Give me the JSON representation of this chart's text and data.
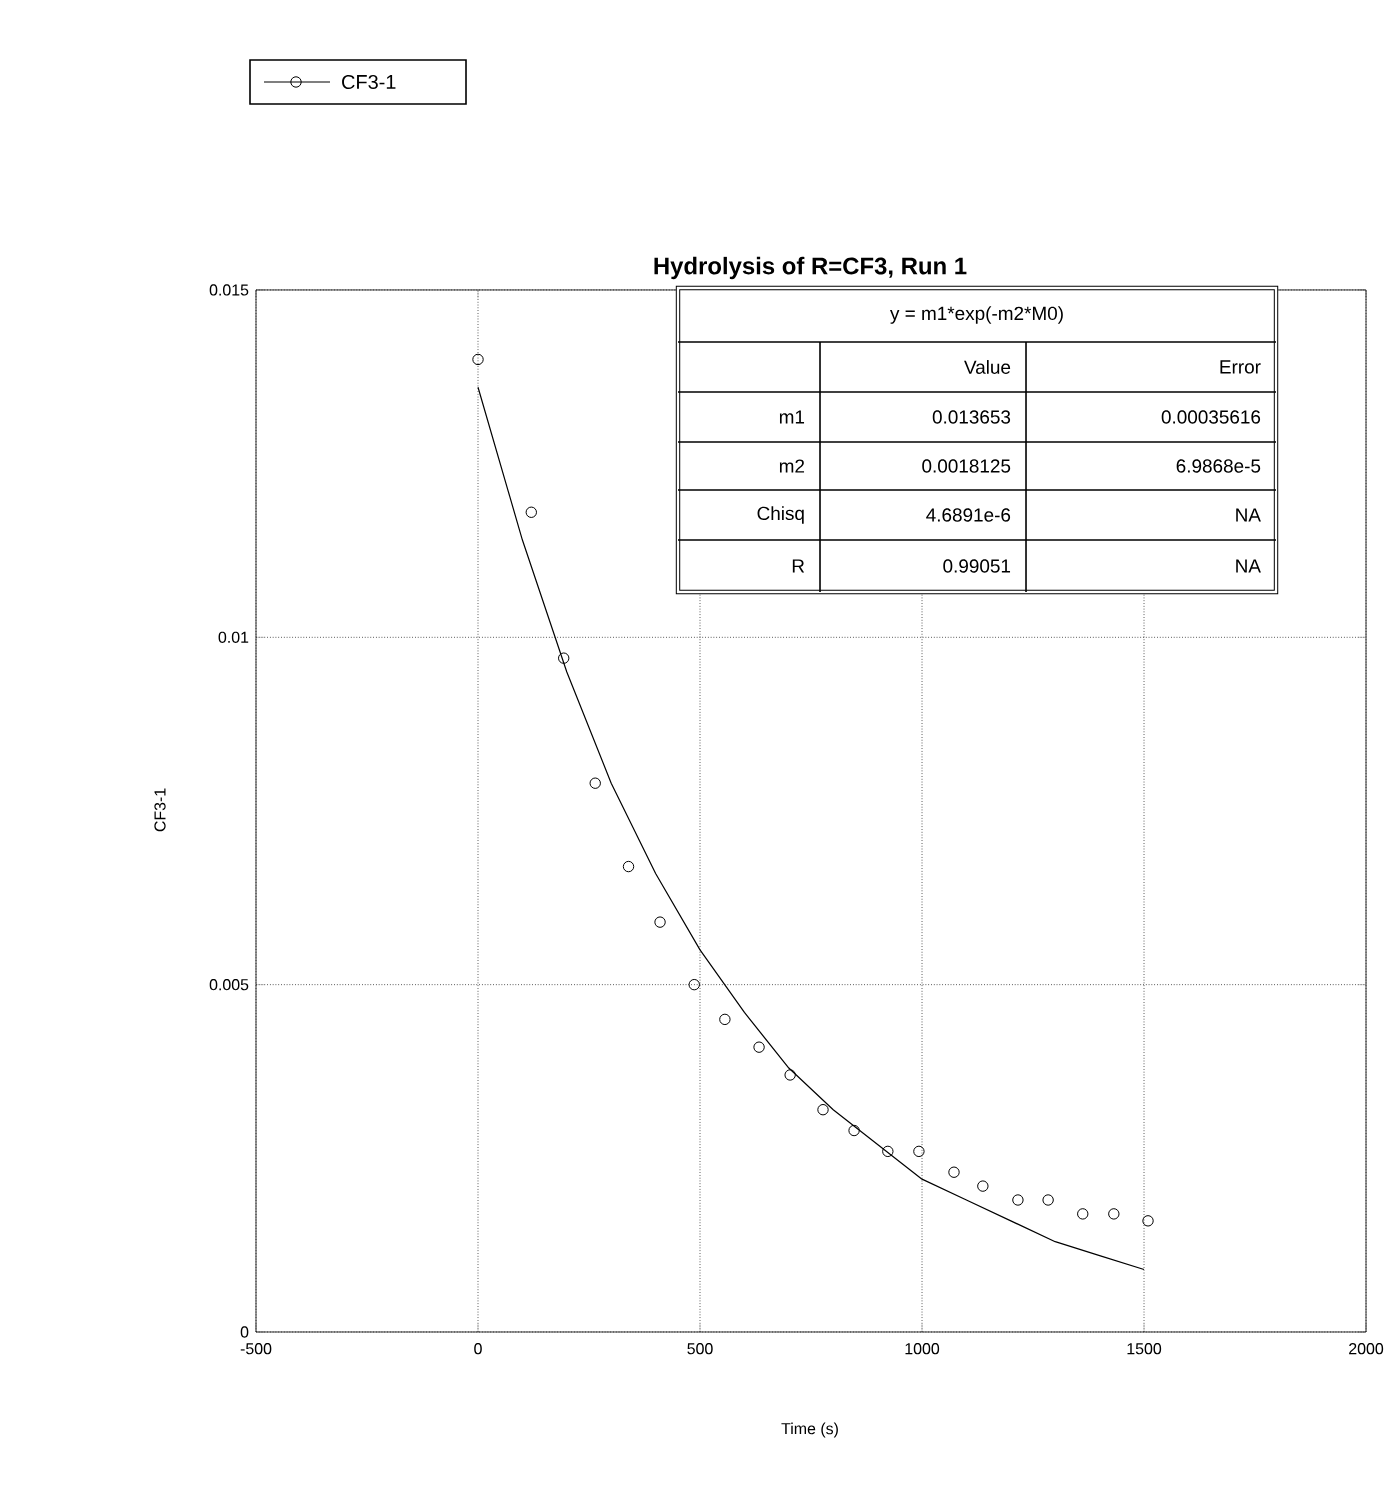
{
  "chart_data": {
    "type": "scatter",
    "title": "Hydrolysis of R=CF3, Run 1",
    "xlabel": "Time (s)",
    "ylabel": "CF3-1",
    "xlim": [
      -500,
      2000
    ],
    "ylim": [
      0,
      0.015
    ],
    "xticks": [
      -500,
      0,
      500,
      1000,
      1500,
      2000
    ],
    "yticks": [
      0,
      0.005,
      0.01,
      0.015
    ],
    "grid": true,
    "legend": "top left",
    "series": [
      {
        "name": "CF3-1",
        "marker": "circle",
        "color": "#000000",
        "x": [
          0,
          120,
          193,
          264,
          339,
          410,
          487,
          556,
          633,
          703,
          777,
          847,
          923,
          993,
          1072,
          1137,
          1216,
          1284,
          1362,
          1432,
          1509
        ],
        "values": [
          0.014,
          0.0118,
          0.0097,
          0.0079,
          0.0067,
          0.0059,
          0.005,
          0.0045,
          0.0041,
          0.0037,
          0.0032,
          0.0029,
          0.0026,
          0.0026,
          0.0023,
          0.0021,
          0.0019,
          0.0019,
          0.0017,
          0.0017,
          0.0016
        ]
      },
      {
        "type": "line",
        "line_style": "solid",
        "color": "#000000",
        "x": [
          0,
          100,
          200,
          300,
          400,
          500,
          600,
          700,
          800,
          900,
          1000,
          1100,
          1200,
          1300,
          1400,
          1500
        ],
        "values": [
          0.0136,
          0.0114,
          0.0095,
          0.0079,
          0.0066,
          0.0055,
          0.0046,
          0.0038,
          0.0032,
          0.0027,
          0.0022,
          0.0019,
          0.0016,
          0.0013,
          0.0011,
          0.0009
        ]
      }
    ],
    "annotations": [
      "y = m1*exp(-m2*M0)",
      "Value",
      "Error",
      "m1",
      "0.013653",
      "0.00035616",
      "m2",
      "0.0018125",
      "6.9868e-5",
      "Chisq",
      "4.6891e-6",
      "NA",
      "R",
      "0.99051",
      "NA"
    ]
  }
}
